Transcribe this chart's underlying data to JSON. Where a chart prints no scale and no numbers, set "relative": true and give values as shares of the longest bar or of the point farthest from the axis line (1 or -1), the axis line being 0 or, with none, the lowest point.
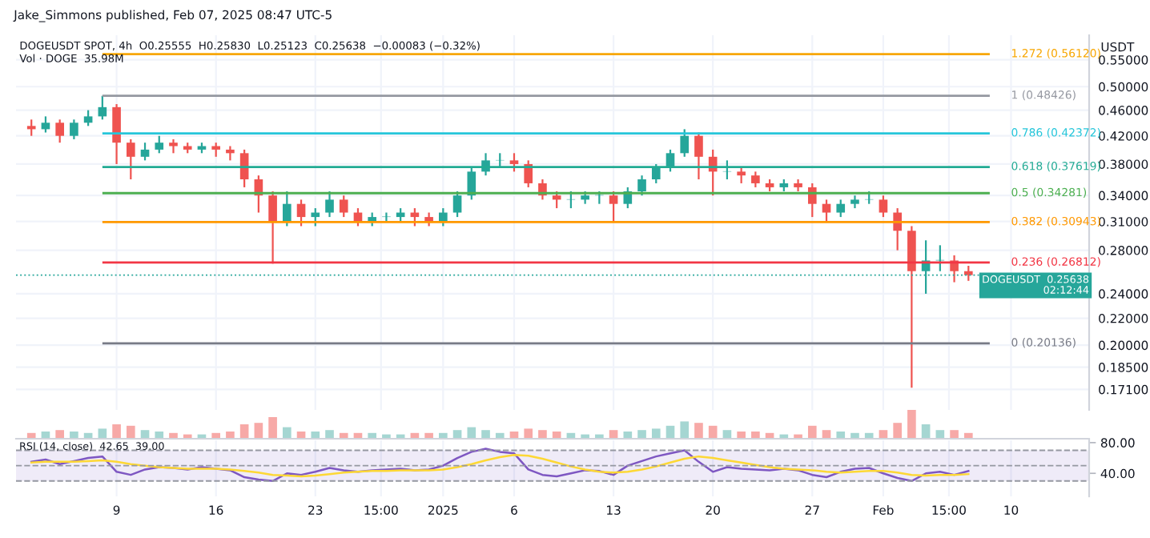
{
  "chart_data": [
    {
      "type": "candlestick",
      "title": "DOGEUSDT SPOT, 4h  O0.25555  H0.25830  L0.25123  C0.25638  −0.00083 (−0.32%)",
      "subtitle": "Jake_Simmons published, Feb 07, 2025 08:47 UTC-5",
      "ylabel": "USDT",
      "x": [
        "2024-12-03",
        "2024-12-04",
        "2024-12-05",
        "2024-12-06",
        "2024-12-07",
        "2024-12-08",
        "2024-12-09",
        "2024-12-10",
        "2024-12-11",
        "2024-12-12",
        "2024-12-13",
        "2024-12-14",
        "2024-12-15",
        "2024-12-16",
        "2024-12-17",
        "2024-12-18",
        "2024-12-19",
        "2024-12-20",
        "2024-12-21",
        "2024-12-22",
        "2024-12-23",
        "2024-12-24",
        "2024-12-25",
        "2024-12-26",
        "2024-12-27",
        "2024-12-28",
        "2024-12-29",
        "2024-12-30",
        "2024-12-31",
        "2025-01-01",
        "2025-01-02",
        "2025-01-03",
        "2025-01-04",
        "2025-01-05",
        "2025-01-06",
        "2025-01-07",
        "2025-01-08",
        "2025-01-09",
        "2025-01-10",
        "2025-01-11",
        "2025-01-12",
        "2025-01-13",
        "2025-01-14",
        "2025-01-15",
        "2025-01-16",
        "2025-01-17",
        "2025-01-18",
        "2025-01-19",
        "2025-01-20",
        "2025-01-21",
        "2025-01-22",
        "2025-01-23",
        "2025-01-24",
        "2025-01-25",
        "2025-01-26",
        "2025-01-27",
        "2025-01-28",
        "2025-01-29",
        "2025-01-30",
        "2025-01-31",
        "2025-02-01",
        "2025-02-02",
        "2025-02-03",
        "2025-02-04",
        "2025-02-05",
        "2025-02-06",
        "2025-02-07"
      ],
      "ohlc": [
        [
          0.435,
          0.445,
          0.42,
          0.43
        ],
        [
          0.43,
          0.45,
          0.425,
          0.44
        ],
        [
          0.44,
          0.445,
          0.41,
          0.42
        ],
        [
          0.42,
          0.445,
          0.415,
          0.44
        ],
        [
          0.44,
          0.46,
          0.435,
          0.45
        ],
        [
          0.45,
          0.484,
          0.445,
          0.465
        ],
        [
          0.465,
          0.47,
          0.38,
          0.41
        ],
        [
          0.41,
          0.415,
          0.36,
          0.39
        ],
        [
          0.39,
          0.41,
          0.385,
          0.4
        ],
        [
          0.4,
          0.42,
          0.395,
          0.41
        ],
        [
          0.41,
          0.415,
          0.395,
          0.405
        ],
        [
          0.405,
          0.41,
          0.395,
          0.4
        ],
        [
          0.4,
          0.41,
          0.395,
          0.405
        ],
        [
          0.405,
          0.41,
          0.39,
          0.4
        ],
        [
          0.4,
          0.405,
          0.385,
          0.395
        ],
        [
          0.395,
          0.4,
          0.35,
          0.36
        ],
        [
          0.36,
          0.365,
          0.32,
          0.34
        ],
        [
          0.34,
          0.345,
          0.267,
          0.31
        ],
        [
          0.31,
          0.345,
          0.305,
          0.33
        ],
        [
          0.33,
          0.335,
          0.305,
          0.315
        ],
        [
          0.315,
          0.325,
          0.305,
          0.32
        ],
        [
          0.32,
          0.345,
          0.315,
          0.335
        ],
        [
          0.335,
          0.34,
          0.315,
          0.32
        ],
        [
          0.32,
          0.325,
          0.305,
          0.31
        ],
        [
          0.31,
          0.32,
          0.305,
          0.315
        ],
        [
          0.315,
          0.32,
          0.31,
          0.315
        ],
        [
          0.315,
          0.325,
          0.31,
          0.32
        ],
        [
          0.32,
          0.325,
          0.305,
          0.315
        ],
        [
          0.315,
          0.32,
          0.305,
          0.31
        ],
        [
          0.31,
          0.325,
          0.305,
          0.32
        ],
        [
          0.32,
          0.345,
          0.315,
          0.34
        ],
        [
          0.34,
          0.375,
          0.335,
          0.37
        ],
        [
          0.37,
          0.395,
          0.365,
          0.385
        ],
        [
          0.385,
          0.395,
          0.375,
          0.385
        ],
        [
          0.385,
          0.395,
          0.37,
          0.38
        ],
        [
          0.38,
          0.385,
          0.35,
          0.355
        ],
        [
          0.355,
          0.36,
          0.335,
          0.34
        ],
        [
          0.34,
          0.345,
          0.325,
          0.335
        ],
        [
          0.335,
          0.345,
          0.325,
          0.335
        ],
        [
          0.335,
          0.345,
          0.33,
          0.34
        ],
        [
          0.34,
          0.345,
          0.33,
          0.34
        ],
        [
          0.34,
          0.345,
          0.31,
          0.33
        ],
        [
          0.33,
          0.35,
          0.325,
          0.345
        ],
        [
          0.345,
          0.365,
          0.34,
          0.36
        ],
        [
          0.36,
          0.38,
          0.355,
          0.375
        ],
        [
          0.375,
          0.4,
          0.37,
          0.395
        ],
        [
          0.395,
          0.43,
          0.39,
          0.42
        ],
        [
          0.42,
          0.425,
          0.36,
          0.39
        ],
        [
          0.39,
          0.4,
          0.34,
          0.37
        ],
        [
          0.37,
          0.385,
          0.36,
          0.37
        ],
        [
          0.37,
          0.375,
          0.355,
          0.365
        ],
        [
          0.365,
          0.37,
          0.35,
          0.355
        ],
        [
          0.355,
          0.36,
          0.345,
          0.35
        ],
        [
          0.35,
          0.36,
          0.345,
          0.355
        ],
        [
          0.355,
          0.36,
          0.345,
          0.35
        ],
        [
          0.35,
          0.355,
          0.315,
          0.33
        ],
        [
          0.33,
          0.335,
          0.31,
          0.32
        ],
        [
          0.32,
          0.335,
          0.315,
          0.33
        ],
        [
          0.33,
          0.34,
          0.325,
          0.335
        ],
        [
          0.335,
          0.345,
          0.33,
          0.335
        ],
        [
          0.335,
          0.34,
          0.315,
          0.32
        ],
        [
          0.32,
          0.325,
          0.28,
          0.3
        ],
        [
          0.3,
          0.305,
          0.172,
          0.26
        ],
        [
          0.26,
          0.29,
          0.24,
          0.27
        ],
        [
          0.27,
          0.285,
          0.26,
          0.27
        ],
        [
          0.27,
          0.275,
          0.25,
          0.26
        ],
        [
          0.26,
          0.265,
          0.25123,
          0.25638
        ]
      ],
      "colors": [
        "#ef5350",
        "#26a69a",
        "#ef5350",
        "#26a69a",
        "#26a69a",
        "#26a69a",
        "#ef5350",
        "#ef5350",
        "#26a69a",
        "#26a69a",
        "#ef5350",
        "#ef5350",
        "#26a69a",
        "#ef5350",
        "#ef5350",
        "#ef5350",
        "#ef5350",
        "#ef5350",
        "#26a69a",
        "#ef5350",
        "#26a69a",
        "#26a69a",
        "#ef5350",
        "#ef5350",
        "#26a69a",
        "#26a69a",
        "#26a69a",
        "#ef5350",
        "#ef5350",
        "#26a69a",
        "#26a69a",
        "#26a69a",
        "#26a69a",
        "#26a69a",
        "#ef5350",
        "#ef5350",
        "#ef5350",
        "#ef5350",
        "#26a69a",
        "#26a69a",
        "#26a69a",
        "#ef5350",
        "#26a69a",
        "#26a69a",
        "#26a69a",
        "#26a69a",
        "#26a69a",
        "#ef5350",
        "#ef5350",
        "#26a69a",
        "#ef5350",
        "#ef5350",
        "#ef5350",
        "#26a69a",
        "#ef5350",
        "#ef5350",
        "#ef5350",
        "#26a69a",
        "#26a69a",
        "#26a69a",
        "#ef5350",
        "#ef5350",
        "#ef5350",
        "#26a69a",
        "#26a69a",
        "#ef5350",
        "#ef5350"
      ],
      "log": true,
      "xlim": [
        "2024-12-01T22:00",
        "2025-02-15T12:00"
      ],
      "ylim": [
        0.159,
        0.6
      ],
      "yticks": [
        {
          "value": 0.55,
          "label": "0.55000"
        },
        {
          "value": 0.5,
          "label": "0.50000"
        },
        {
          "value": 0.46,
          "label": "0.46000"
        },
        {
          "value": 0.42,
          "label": "0.42000"
        },
        {
          "value": 0.38,
          "label": "0.38000"
        },
        {
          "value": 0.34,
          "label": "0.34000"
        },
        {
          "value": 0.31,
          "label": "0.31000"
        },
        {
          "value": 0.28,
          "label": "0.28000"
        },
        {
          "value": 0.24,
          "label": "0.24000"
        },
        {
          "value": 0.22,
          "label": "0.22000"
        },
        {
          "value": 0.2,
          "label": "0.20000"
        },
        {
          "value": 0.185,
          "label": "0.18500"
        },
        {
          "value": 0.171,
          "label": "0.17100"
        }
      ],
      "tick_labels": "y",
      "grid": true,
      "ref_lines": [
        {
          "axis": "y",
          "value": 0.5612,
          "label": "1.272 (0.56120)",
          "color": "#f7a600"
        },
        {
          "axis": "y",
          "value": 0.48426,
          "label": "1 (0.48426)",
          "color": "#9598a1"
        },
        {
          "axis": "y",
          "value": 0.42372,
          "label": "0.786 (0.42372)",
          "color": "#26c6da"
        },
        {
          "axis": "y",
          "value": 0.37619,
          "label": "0.618 (0.37619)",
          "color": "#22ab94"
        },
        {
          "axis": "y",
          "value": 0.34281,
          "label": "0.5 (0.34281)",
          "color": "#4caf50"
        },
        {
          "axis": "y",
          "value": 0.30943,
          "label": "0.382 (0.30943)",
          "color": "#ff9800"
        },
        {
          "axis": "y",
          "value": 0.26812,
          "label": "0.236 (0.26812)",
          "color": "#f23645"
        },
        {
          "axis": "y",
          "value": 0.20136,
          "label": "0 (0.20136)",
          "color": "#787b86"
        },
        {
          "axis": "y",
          "value": 0.25638,
          "label": "DOGEUSDT  0.25638\n02:12:44",
          "color": "#26a69a",
          "line_style": "dotted"
        }
      ]
    },
    {
      "type": "bar",
      "relative": true,
      "title": "Vol · DOGE  35.98M",
      "tick_labels": false,
      "categories": [
        null,
        null,
        null,
        null,
        null,
        null,
        null,
        null,
        null,
        null,
        null,
        null,
        null,
        null,
        null,
        null,
        null,
        null,
        null,
        null,
        null,
        null,
        null,
        null,
        null,
        null,
        null,
        null,
        null,
        null,
        null,
        null,
        null,
        null,
        null,
        null,
        null,
        null,
        null,
        null,
        null,
        null,
        null,
        null,
        null,
        null,
        null,
        null,
        null,
        null,
        null,
        null,
        null,
        null,
        null,
        null,
        null,
        null,
        null,
        null,
        null,
        null,
        null,
        null,
        null,
        null,
        null
      ],
      "values": [
        0.2,
        0.25,
        0.3,
        0.25,
        0.2,
        0.35,
        0.5,
        0.45,
        0.3,
        0.25,
        0.2,
        0.15,
        0.15,
        0.2,
        0.25,
        0.5,
        0.55,
        0.75,
        0.4,
        0.25,
        0.25,
        0.3,
        0.2,
        0.2,
        0.2,
        0.15,
        0.15,
        0.2,
        0.2,
        0.2,
        0.3,
        0.4,
        0.3,
        0.2,
        0.25,
        0.35,
        0.3,
        0.25,
        0.2,
        0.15,
        0.15,
        0.3,
        0.25,
        0.3,
        0.35,
        0.45,
        0.6,
        0.55,
        0.45,
        0.3,
        0.25,
        0.25,
        0.2,
        0.15,
        0.15,
        0.45,
        0.3,
        0.25,
        0.2,
        0.2,
        0.3,
        0.55,
        1,
        0.5,
        0.3,
        0.3,
        0.2
      ],
      "colors": [
        "#f7a9a7",
        "#a5d6d2",
        "#f7a9a7",
        "#a5d6d2",
        "#a5d6d2",
        "#a5d6d2",
        "#f7a9a7",
        "#f7a9a7",
        "#a5d6d2",
        "#a5d6d2",
        "#f7a9a7",
        "#f7a9a7",
        "#a5d6d2",
        "#f7a9a7",
        "#f7a9a7",
        "#f7a9a7",
        "#f7a9a7",
        "#f7a9a7",
        "#a5d6d2",
        "#f7a9a7",
        "#a5d6d2",
        "#a5d6d2",
        "#f7a9a7",
        "#f7a9a7",
        "#a5d6d2",
        "#a5d6d2",
        "#a5d6d2",
        "#f7a9a7",
        "#f7a9a7",
        "#a5d6d2",
        "#a5d6d2",
        "#a5d6d2",
        "#a5d6d2",
        "#a5d6d2",
        "#f7a9a7",
        "#f7a9a7",
        "#f7a9a7",
        "#f7a9a7",
        "#a5d6d2",
        "#a5d6d2",
        "#a5d6d2",
        "#f7a9a7",
        "#a5d6d2",
        "#a5d6d2",
        "#a5d6d2",
        "#a5d6d2",
        "#a5d6d2",
        "#f7a9a7",
        "#f7a9a7",
        "#a5d6d2",
        "#f7a9a7",
        "#f7a9a7",
        "#f7a9a7",
        "#a5d6d2",
        "#f7a9a7",
        "#f7a9a7",
        "#f7a9a7",
        "#a5d6d2",
        "#a5d6d2",
        "#a5d6d2",
        "#f7a9a7",
        "#f7a9a7",
        "#f7a9a7",
        "#a5d6d2",
        "#a5d6d2",
        "#f7a9a7",
        "#f7a9a7"
      ]
    },
    {
      "type": "line",
      "title": "RSI (14, close)  42.65  39.00",
      "x": [
        "2024-12-03",
        "2024-12-04",
        "2024-12-05",
        "2024-12-06",
        "2024-12-07",
        "2024-12-08",
        "2024-12-09",
        "2024-12-10",
        "2024-12-11",
        "2024-12-12",
        "2024-12-13",
        "2024-12-14",
        "2024-12-15",
        "2024-12-16",
        "2024-12-17",
        "2024-12-18",
        "2024-12-19",
        "2024-12-20",
        "2024-12-21",
        "2024-12-22",
        "2024-12-23",
        "2024-12-24",
        "2024-12-25",
        "2024-12-26",
        "2024-12-27",
        "2024-12-28",
        "2024-12-29",
        "2024-12-30",
        "2024-12-31",
        "2025-01-01",
        "2025-01-02",
        "2025-01-03",
        "2025-01-04",
        "2025-01-05",
        "2025-01-06",
        "2025-01-07",
        "2025-01-08",
        "2025-01-09",
        "2025-01-10",
        "2025-01-11",
        "2025-01-12",
        "2025-01-13",
        "2025-01-14",
        "2025-01-15",
        "2025-01-16",
        "2025-01-17",
        "2025-01-18",
        "2025-01-19",
        "2025-01-20",
        "2025-01-21",
        "2025-01-22",
        "2025-01-23",
        "2025-01-24",
        "2025-01-25",
        "2025-01-26",
        "2025-01-27",
        "2025-01-28",
        "2025-01-29",
        "2025-01-30",
        "2025-01-31",
        "2025-02-01",
        "2025-02-02",
        "2025-02-03",
        "2025-02-04",
        "2025-02-05",
        "2025-02-06",
        "2025-02-07"
      ],
      "series": [
        {
          "color": "#7e57c2",
          "values": [
            55,
            58,
            52,
            56,
            60,
            62,
            42,
            38,
            45,
            48,
            47,
            45,
            48,
            46,
            44,
            35,
            32,
            30,
            40,
            38,
            42,
            47,
            44,
            42,
            44,
            45,
            46,
            44,
            45,
            50,
            60,
            68,
            72,
            68,
            66,
            45,
            38,
            36,
            40,
            44,
            43,
            38,
            50,
            56,
            62,
            66,
            70,
            55,
            42,
            48,
            46,
            45,
            44,
            46,
            44,
            38,
            35,
            42,
            46,
            47,
            40,
            34,
            30,
            40,
            42,
            38,
            43
          ]
        },
        {
          "color": "#fdd835",
          "values": [
            54,
            55,
            55,
            55,
            56,
            57,
            55,
            52,
            50,
            48,
            47,
            46,
            46,
            46,
            45,
            43,
            41,
            38,
            37,
            36,
            37,
            39,
            41,
            42,
            43,
            43,
            44,
            44,
            44,
            45,
            48,
            52,
            57,
            61,
            64,
            63,
            59,
            54,
            49,
            45,
            42,
            41,
            42,
            45,
            49,
            54,
            59,
            62,
            60,
            57,
            54,
            51,
            48,
            46,
            45,
            44,
            42,
            41,
            42,
            43,
            43,
            41,
            38,
            37,
            38,
            38,
            39
          ]
        }
      ],
      "xlim": [
        "2024-12-01T22:00",
        "2025-02-15T12:00"
      ],
      "ylim": [
        10,
        83
      ],
      "yticks": [
        {
          "value": 40,
          "label": "40.00"
        },
        {
          "value": 80,
          "label": "80.00"
        }
      ],
      "xticks": [
        {
          "value": "2024-12-09",
          "label": "9"
        },
        {
          "value": "2024-12-16",
          "label": "16"
        },
        {
          "value": "2024-12-23",
          "label": "23"
        },
        {
          "value": "2024-12-27T15:00",
          "label": "15:00"
        },
        {
          "value": "2025-01-01",
          "label": "2025"
        },
        {
          "value": "2025-01-06",
          "label": "6"
        },
        {
          "value": "2025-01-13",
          "label": "13"
        },
        {
          "value": "2025-01-20",
          "label": "20"
        },
        {
          "value": "2025-01-27",
          "label": "27"
        },
        {
          "value": "2025-02-01",
          "label": "Feb"
        },
        {
          "value": "2025-02-05T15:00",
          "label": "15:00"
        },
        {
          "value": "2025-02-10",
          "label": "10"
        }
      ],
      "grid": "x",
      "bands": [
        {
          "axis": "y",
          "from": 30,
          "to": 70,
          "color": "#7e57c2"
        }
      ],
      "ref_lines": [
        {
          "axis": "y",
          "value": 70,
          "line_style": "dashed",
          "color": "#9598a1"
        },
        {
          "axis": "y",
          "value": 50,
          "line_style": "dashed",
          "color": "#9598a1"
        },
        {
          "axis": "y",
          "value": 30,
          "line_style": "dashed",
          "color": "#9598a1"
        }
      ]
    }
  ]
}
